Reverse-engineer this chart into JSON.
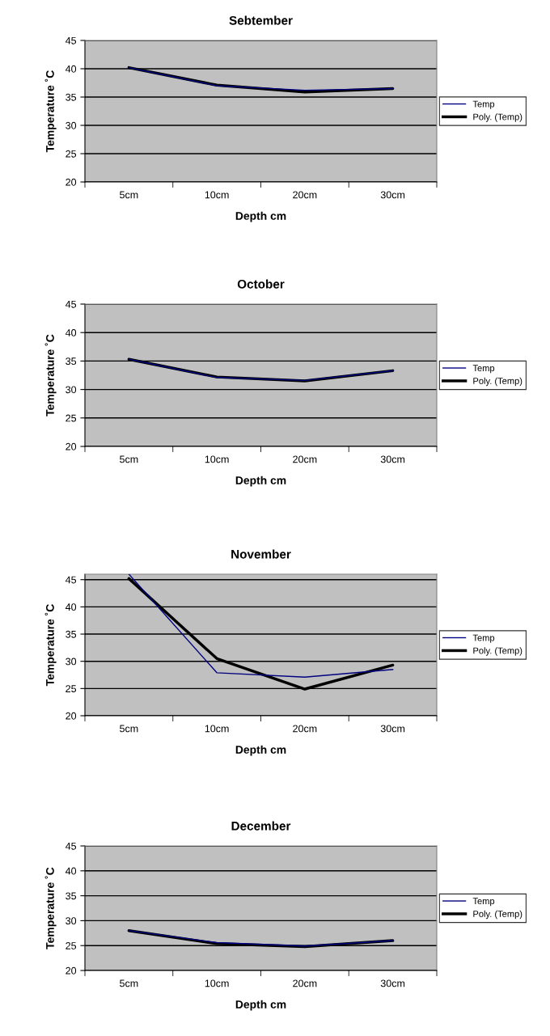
{
  "chart_data": [
    {
      "type": "line",
      "title": "Sebtember",
      "xlabel": "Depth cm",
      "ylabel": "Temperature ˚C",
      "categories": [
        "5cm",
        "10cm",
        "20cm",
        "30cm"
      ],
      "ylim": [
        20,
        45
      ],
      "yticks": [
        20,
        25,
        30,
        35,
        40,
        45
      ],
      "grid": "y",
      "legend": "right",
      "marker": "none",
      "series": [
        {
          "name": "Temp",
          "color": "#000080",
          "values": [
            40.2,
            37.0,
            36.2,
            36.5
          ]
        },
        {
          "name": "Poly. (Temp)",
          "color": "#000000",
          "values": [
            40.2,
            37.1,
            35.9,
            36.5
          ]
        }
      ]
    },
    {
      "type": "line",
      "title": "October",
      "xlabel": "Depth cm",
      "ylabel": "Temperature ˚C",
      "categories": [
        "5cm",
        "10cm",
        "20cm",
        "30cm"
      ],
      "ylim": [
        20,
        45
      ],
      "yticks": [
        20,
        25,
        30,
        35,
        40,
        45
      ],
      "grid": "y",
      "legend": "right",
      "marker": "none",
      "series": [
        {
          "name": "Temp",
          "color": "#000080",
          "values": [
            35.3,
            32.1,
            31.6,
            33.3
          ]
        },
        {
          "name": "Poly. (Temp)",
          "color": "#000000",
          "values": [
            35.3,
            32.2,
            31.5,
            33.3
          ]
        }
      ]
    },
    {
      "type": "line",
      "title": "November",
      "xlabel": "Depth cm",
      "ylabel": "Temperature ˚C",
      "categories": [
        "5cm",
        "10cm",
        "20cm",
        "30cm"
      ],
      "ylim": [
        20,
        46
      ],
      "yticks": [
        20,
        25,
        30,
        35,
        40,
        45
      ],
      "grid": "y",
      "legend": "right",
      "marker": "none",
      "series": [
        {
          "name": "Temp",
          "color": "#000080",
          "values": [
            46,
            27.9,
            27.1,
            28.5
          ]
        },
        {
          "name": "Poly. (Temp)",
          "color": "#000000",
          "values": [
            45.2,
            30.5,
            24.9,
            29.3
          ]
        }
      ]
    },
    {
      "type": "line",
      "title": "December",
      "xlabel": "Depth cm",
      "ylabel": "Temperature ˚C",
      "categories": [
        "5cm",
        "10cm",
        "20cm",
        "30cm"
      ],
      "ylim": [
        20,
        45
      ],
      "yticks": [
        20,
        25,
        30,
        35,
        40,
        45
      ],
      "grid": "y",
      "legend": "right",
      "marker": "none",
      "series": [
        {
          "name": "Temp",
          "color": "#000080",
          "values": [
            28.0,
            25.6,
            24.9,
            26.0
          ]
        },
        {
          "name": "Poly. (Temp)",
          "color": "#000000",
          "values": [
            28.0,
            25.4,
            24.8,
            26.0
          ]
        }
      ]
    }
  ]
}
